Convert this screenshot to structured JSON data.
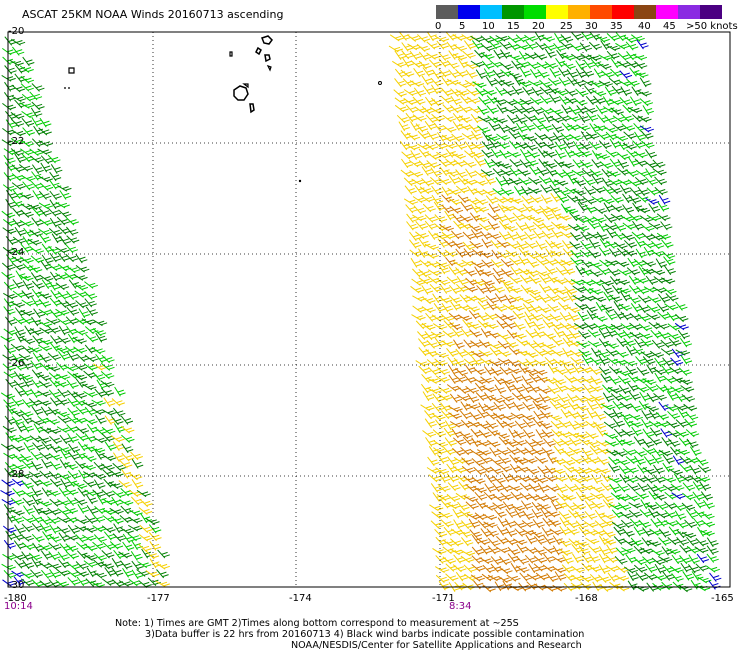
{
  "title": "ASCAT 25KM NOAA Winds 20160713 ascending",
  "legend": {
    "labels": [
      "0",
      "5",
      "10",
      "15",
      "20",
      "25",
      "30",
      "35",
      "40",
      "45",
      ">50 knots"
    ],
    "colors": [
      "#5c5c5c",
      "#0000ee",
      "#00bfff",
      "#009600",
      "#00dd00",
      "#ffff00",
      "#ffb000",
      "#ff4a00",
      "#ff0000",
      "#8b4513",
      "#ff00ff",
      "#8a2be2",
      "#4b0082"
    ]
  },
  "axes": {
    "lat_labels": [
      "-20",
      "-22",
      "-24",
      "-26",
      "-28",
      "-30"
    ],
    "lon_labels": [
      "-180",
      "-177",
      "-174",
      "-171",
      "-168",
      "-165"
    ]
  },
  "pass_times": [
    "10:14",
    "8:34"
  ],
  "notes": {
    "line1": "Note: 1) Times are GMT 2)Times along bottom correspond to measurement at ~25S",
    "line2": "3)Data buffer is 22 hrs from 20160713 4) Black wind barbs indicate possible contamination",
    "line3": "NOAA/NESDIS/Center for Satellite Applications and Research"
  },
  "map_colors": {
    "green_dark": "#008000",
    "green_light": "#00cc00",
    "yellow": "#f5d000",
    "orange": "#d27a00",
    "blue": "#0000cc",
    "coast": "#000000",
    "grid": "#000000"
  }
}
